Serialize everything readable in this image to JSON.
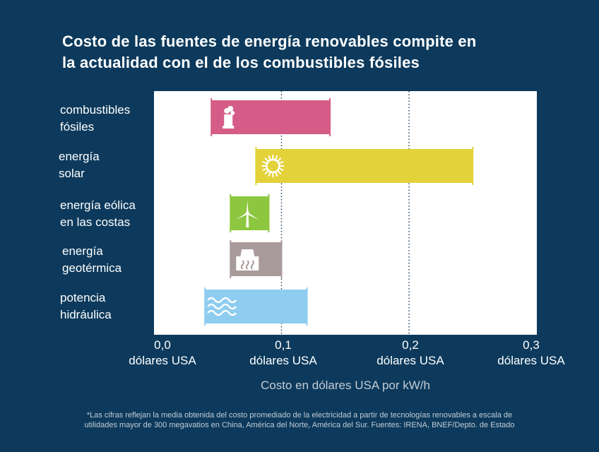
{
  "title_lines": [
    "Costo de las fuentes de energía renovables compite en",
    "la actualidad con el de los combustibles fósiles"
  ],
  "chart_data": {
    "type": "bar",
    "orientation": "horizontal",
    "subtype": "floating-range",
    "xlabel": "Costo en dólares USA por kW/h",
    "xlim": [
      0,
      0.3
    ],
    "gridlines": [
      0.1,
      0.2
    ],
    "ticks": [
      {
        "value": 0.0,
        "label": "0,0",
        "unit": "dólares USA"
      },
      {
        "value": 0.1,
        "label": "0,1",
        "unit": "dólares USA"
      },
      {
        "value": 0.2,
        "label": "0,2",
        "unit": "dólares USA"
      },
      {
        "value": 0.3,
        "label": "0,3",
        "unit": "dólares USA"
      }
    ],
    "categories": [
      {
        "label_lines": [
          "combustibles",
          "fósiles"
        ],
        "min": 0.045,
        "max": 0.138,
        "color": "#d45c87",
        "icon": "factory-icon"
      },
      {
        "label_lines": [
          "energía",
          "solar"
        ],
        "min": 0.08,
        "max": 0.25,
        "color": "#e3d23a",
        "icon": "sun-icon"
      },
      {
        "label_lines": [
          "energía eólica",
          "en las costas"
        ],
        "min": 0.06,
        "max": 0.09,
        "color": "#8dc63f",
        "icon": "wind-turbine-icon"
      },
      {
        "label_lines": [
          "energía",
          "geotérmica"
        ],
        "min": 0.06,
        "max": 0.1,
        "color": "#a99a9b",
        "icon": "geothermal-icon"
      },
      {
        "label_lines": [
          "potencia",
          "hidráulica"
        ],
        "min": 0.04,
        "max": 0.12,
        "color": "#8ecdf0",
        "icon": "water-waves-icon"
      }
    ]
  },
  "footnote_lines": [
    "*Las cifras reflejan la media obtenida del costo promediado de la electricidad a partir de tecnologías renovables a escala de",
    "utilidades mayor de 300 megavatios en China, América del Norte, América del Sur. Fuentes: IRENA, BNEF/Depto. de Estado"
  ]
}
